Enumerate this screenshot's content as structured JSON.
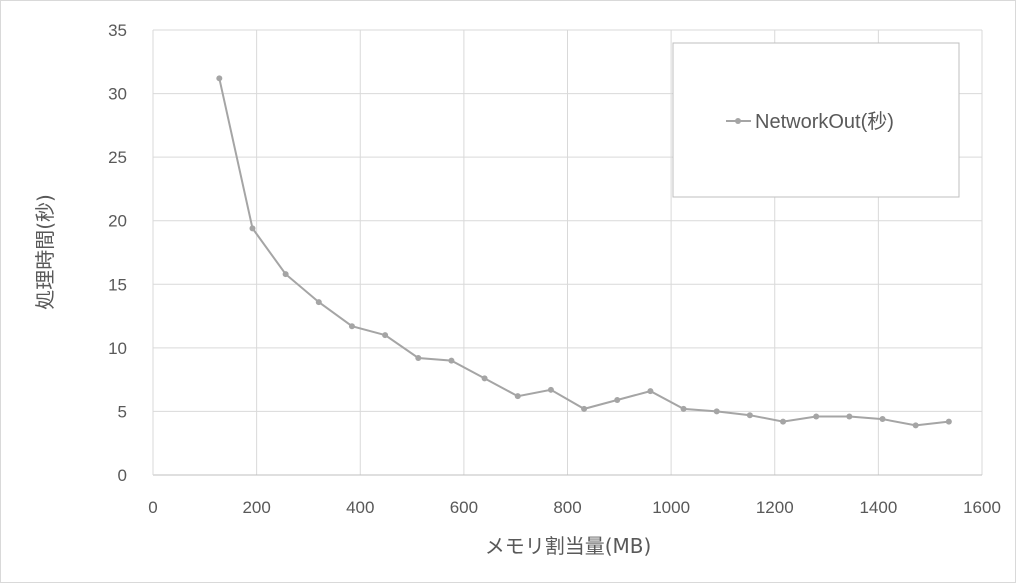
{
  "chart_data": {
    "type": "line",
    "title": "",
    "xlabel": "メモリ割当量(MB)",
    "ylabel": "処理時間(秒)",
    "xlim": [
      0,
      1600
    ],
    "ylim": [
      0,
      35
    ],
    "x_ticks": [
      0,
      200,
      400,
      600,
      800,
      1000,
      1200,
      1400,
      1600
    ],
    "y_ticks": [
      0,
      5,
      10,
      15,
      20,
      25,
      30,
      35
    ],
    "grid": true,
    "legend_position": "top-right",
    "series": [
      {
        "name": "NetworkOut(秒)",
        "color": "#a5a5a5",
        "x": [
          128,
          192,
          256,
          320,
          384,
          448,
          512,
          576,
          640,
          704,
          768,
          832,
          896,
          960,
          1024,
          1088,
          1152,
          1216,
          1280,
          1344,
          1408,
          1472,
          1536
        ],
        "y": [
          31.2,
          19.4,
          15.8,
          13.6,
          11.7,
          11.0,
          9.2,
          9.0,
          7.6,
          6.2,
          6.7,
          5.2,
          5.9,
          6.6,
          5.2,
          5.0,
          4.7,
          4.2,
          4.6,
          4.6,
          4.4,
          3.9,
          4.2
        ]
      }
    ]
  }
}
